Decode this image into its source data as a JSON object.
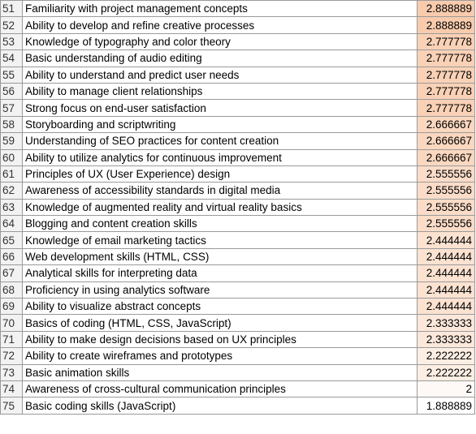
{
  "rows": [
    {
      "number": 51,
      "skill": "Familiarity with project management concepts",
      "score": 2.888889
    },
    {
      "number": 52,
      "skill": "Ability to develop and refine creative processes",
      "score": 2.888889
    },
    {
      "number": 53,
      "skill": "Knowledge of typography and color theory",
      "score": 2.777778
    },
    {
      "number": 54,
      "skill": "Basic understanding of audio editing",
      "score": 2.777778
    },
    {
      "number": 55,
      "skill": "Ability to understand and predict user needs",
      "score": 2.777778
    },
    {
      "number": 56,
      "skill": "Ability to manage client relationships",
      "score": 2.777778
    },
    {
      "number": 57,
      "skill": "Strong focus on end-user satisfaction",
      "score": 2.777778
    },
    {
      "number": 58,
      "skill": "Storyboarding and scriptwriting",
      "score": 2.666667
    },
    {
      "number": 59,
      "skill": "Understanding of SEO practices for content creation",
      "score": 2.666667
    },
    {
      "number": 60,
      "skill": "Ability to utilize analytics for continuous improvement",
      "score": 2.666667
    },
    {
      "number": 61,
      "skill": "Principles of UX (User Experience) design",
      "score": 2.555556
    },
    {
      "number": 62,
      "skill": "Awareness of accessibility standards in digital media",
      "score": 2.555556
    },
    {
      "number": 63,
      "skill": "Knowledge of augmented reality and virtual reality basics",
      "score": 2.555556
    },
    {
      "number": 64,
      "skill": "Blogging and content creation skills",
      "score": 2.555556
    },
    {
      "number": 65,
      "skill": "Knowledge of email marketing tactics",
      "score": 2.444444
    },
    {
      "number": 66,
      "skill": "Web development skills (HTML, CSS)",
      "score": 2.444444
    },
    {
      "number": 67,
      "skill": "Analytical skills for interpreting data",
      "score": 2.444444
    },
    {
      "number": 68,
      "skill": "Proficiency in using analytics software",
      "score": 2.444444
    },
    {
      "number": 69,
      "skill": "Ability to visualize abstract concepts",
      "score": 2.444444
    },
    {
      "number": 70,
      "skill": "Basics of coding (HTML, CSS, JavaScript)",
      "score": 2.333333
    },
    {
      "number": 71,
      "skill": "Ability to make design decisions based on UX principles",
      "score": 2.333333
    },
    {
      "number": 72,
      "skill": "Ability to create wireframes and prototypes",
      "score": 2.222222
    },
    {
      "number": 73,
      "skill": "Basic animation skills",
      "score": 2.222222
    },
    {
      "number": 74,
      "skill": "Awareness of cross-cultural communication principles",
      "score": 2
    },
    {
      "number": 75,
      "skill": "Basic coding skills (JavaScript)",
      "score": 1.888889
    }
  ]
}
